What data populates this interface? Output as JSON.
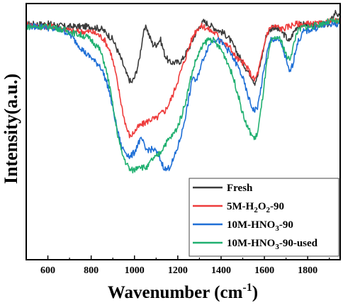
{
  "chart_data": {
    "type": "line",
    "xlabel_main": "Wavenumber (cm",
    "xlabel_sup": "-1",
    "xlabel_end": ")",
    "ylabel": "Intensity(a.u.)",
    "xlim": [
      500,
      1950
    ],
    "ylim": [
      0,
      1
    ],
    "y_ticks_shown": false,
    "x_ticks": [
      600,
      800,
      1000,
      1200,
      1400,
      1600,
      1800
    ],
    "grid": false,
    "legend_position": "bottom-right",
    "series": [
      {
        "name": "Fresh",
        "legend_parts": [
          {
            "t": "Fresh"
          }
        ],
        "color": "#3b3b3b",
        "points": [
          [
            500,
            0.92
          ],
          [
            560,
            0.92
          ],
          [
            620,
            0.92
          ],
          [
            680,
            0.91
          ],
          [
            740,
            0.91
          ],
          [
            800,
            0.91
          ],
          [
            850,
            0.9
          ],
          [
            900,
            0.86
          ],
          [
            940,
            0.78
          ],
          [
            965,
            0.72
          ],
          [
            985,
            0.69
          ],
          [
            1000,
            0.71
          ],
          [
            1020,
            0.77
          ],
          [
            1040,
            0.88
          ],
          [
            1055,
            0.91
          ],
          [
            1070,
            0.87
          ],
          [
            1085,
            0.84
          ],
          [
            1100,
            0.84
          ],
          [
            1120,
            0.86
          ],
          [
            1140,
            0.8
          ],
          [
            1160,
            0.77
          ],
          [
            1180,
            0.77
          ],
          [
            1200,
            0.77
          ],
          [
            1220,
            0.78
          ],
          [
            1240,
            0.81
          ],
          [
            1260,
            0.84
          ],
          [
            1280,
            0.88
          ],
          [
            1300,
            0.91
          ],
          [
            1320,
            0.93
          ],
          [
            1340,
            0.92
          ],
          [
            1360,
            0.91
          ],
          [
            1380,
            0.9
          ],
          [
            1400,
            0.89
          ],
          [
            1420,
            0.88
          ],
          [
            1440,
            0.86
          ],
          [
            1460,
            0.83
          ],
          [
            1480,
            0.8
          ],
          [
            1500,
            0.77
          ],
          [
            1520,
            0.74
          ],
          [
            1540,
            0.72
          ],
          [
            1555,
            0.69
          ],
          [
            1570,
            0.72
          ],
          [
            1590,
            0.8
          ],
          [
            1610,
            0.88
          ],
          [
            1640,
            0.91
          ],
          [
            1660,
            0.9
          ],
          [
            1680,
            0.89
          ],
          [
            1700,
            0.87
          ],
          [
            1715,
            0.85
          ],
          [
            1730,
            0.88
          ],
          [
            1750,
            0.91
          ],
          [
            1780,
            0.92
          ],
          [
            1820,
            0.91
          ],
          [
            1860,
            0.92
          ],
          [
            1900,
            0.92
          ],
          [
            1930,
            0.97
          ],
          [
            1950,
            0.94
          ]
        ]
      },
      {
        "name": "5M-H2O2-90",
        "legend_parts": [
          {
            "t": "5M-H"
          },
          {
            "t": "2",
            "sub": true
          },
          {
            "t": "O"
          },
          {
            "t": "2",
            "sub": true
          },
          {
            "t": "-90"
          }
        ],
        "color": "#ee3b3b",
        "points": [
          [
            500,
            0.92
          ],
          [
            560,
            0.91
          ],
          [
            620,
            0.91
          ],
          [
            680,
            0.9
          ],
          [
            720,
            0.89
          ],
          [
            760,
            0.89
          ],
          [
            800,
            0.89
          ],
          [
            830,
            0.88
          ],
          [
            860,
            0.86
          ],
          [
            890,
            0.81
          ],
          [
            910,
            0.74
          ],
          [
            930,
            0.65
          ],
          [
            950,
            0.56
          ],
          [
            965,
            0.51
          ],
          [
            980,
            0.48
          ],
          [
            1000,
            0.5
          ],
          [
            1020,
            0.52
          ],
          [
            1040,
            0.53
          ],
          [
            1060,
            0.54
          ],
          [
            1080,
            0.55
          ],
          [
            1100,
            0.55
          ],
          [
            1120,
            0.57
          ],
          [
            1140,
            0.58
          ],
          [
            1160,
            0.61
          ],
          [
            1180,
            0.65
          ],
          [
            1200,
            0.7
          ],
          [
            1220,
            0.75
          ],
          [
            1240,
            0.8
          ],
          [
            1260,
            0.85
          ],
          [
            1280,
            0.89
          ],
          [
            1300,
            0.91
          ],
          [
            1320,
            0.91
          ],
          [
            1340,
            0.9
          ],
          [
            1360,
            0.89
          ],
          [
            1380,
            0.88
          ],
          [
            1400,
            0.86
          ],
          [
            1420,
            0.84
          ],
          [
            1440,
            0.83
          ],
          [
            1460,
            0.8
          ],
          [
            1480,
            0.78
          ],
          [
            1500,
            0.77
          ],
          [
            1520,
            0.75
          ],
          [
            1540,
            0.72
          ],
          [
            1555,
            0.7
          ],
          [
            1570,
            0.73
          ],
          [
            1590,
            0.8
          ],
          [
            1610,
            0.88
          ],
          [
            1630,
            0.91
          ],
          [
            1660,
            0.91
          ],
          [
            1680,
            0.9
          ],
          [
            1710,
            0.91
          ],
          [
            1740,
            0.92
          ],
          [
            1780,
            0.92
          ],
          [
            1820,
            0.92
          ],
          [
            1860,
            0.92
          ],
          [
            1900,
            0.93
          ],
          [
            1950,
            0.93
          ]
        ]
      },
      {
        "name": "10M-HNO3-90",
        "legend_parts": [
          {
            "t": "10M-HNO"
          },
          {
            "t": "3",
            "sub": true
          },
          {
            "t": "-90"
          }
        ],
        "color": "#1f6fd6",
        "points": [
          [
            500,
            0.91
          ],
          [
            540,
            0.91
          ],
          [
            580,
            0.91
          ],
          [
            620,
            0.9
          ],
          [
            650,
            0.9
          ],
          [
            680,
            0.89
          ],
          [
            700,
            0.88
          ],
          [
            720,
            0.86
          ],
          [
            740,
            0.84
          ],
          [
            760,
            0.82
          ],
          [
            780,
            0.8
          ],
          [
            800,
            0.79
          ],
          [
            820,
            0.77
          ],
          [
            840,
            0.76
          ],
          [
            860,
            0.72
          ],
          [
            880,
            0.67
          ],
          [
            900,
            0.59
          ],
          [
            920,
            0.51
          ],
          [
            940,
            0.44
          ],
          [
            960,
            0.42
          ],
          [
            980,
            0.4
          ],
          [
            1000,
            0.42
          ],
          [
            1020,
            0.46
          ],
          [
            1035,
            0.47
          ],
          [
            1050,
            0.43
          ],
          [
            1070,
            0.43
          ],
          [
            1090,
            0.43
          ],
          [
            1110,
            0.41
          ],
          [
            1130,
            0.37
          ],
          [
            1145,
            0.35
          ],
          [
            1160,
            0.36
          ],
          [
            1180,
            0.39
          ],
          [
            1200,
            0.44
          ],
          [
            1220,
            0.5
          ],
          [
            1240,
            0.58
          ],
          [
            1260,
            0.67
          ],
          [
            1270,
            0.72
          ],
          [
            1285,
            0.69
          ],
          [
            1300,
            0.74
          ],
          [
            1320,
            0.79
          ],
          [
            1340,
            0.83
          ],
          [
            1360,
            0.86
          ],
          [
            1380,
            0.86
          ],
          [
            1400,
            0.85
          ],
          [
            1420,
            0.83
          ],
          [
            1440,
            0.81
          ],
          [
            1460,
            0.78
          ],
          [
            1480,
            0.75
          ],
          [
            1500,
            0.71
          ],
          [
            1520,
            0.65
          ],
          [
            1540,
            0.6
          ],
          [
            1555,
            0.58
          ],
          [
            1570,
            0.6
          ],
          [
            1590,
            0.7
          ],
          [
            1610,
            0.8
          ],
          [
            1630,
            0.86
          ],
          [
            1660,
            0.86
          ],
          [
            1680,
            0.84
          ],
          [
            1700,
            0.78
          ],
          [
            1715,
            0.73
          ],
          [
            1730,
            0.76
          ],
          [
            1750,
            0.84
          ],
          [
            1780,
            0.89
          ],
          [
            1820,
            0.9
          ],
          [
            1860,
            0.91
          ],
          [
            1900,
            0.92
          ],
          [
            1950,
            0.92
          ]
        ]
      },
      {
        "name": "10M-HNO3-90-used",
        "legend_parts": [
          {
            "t": "10M-HNO"
          },
          {
            "t": "3",
            "sub": true
          },
          {
            "t": "-90-used"
          }
        ],
        "color": "#20b070",
        "points": [
          [
            500,
            0.91
          ],
          [
            540,
            0.91
          ],
          [
            580,
            0.91
          ],
          [
            620,
            0.91
          ],
          [
            660,
            0.9
          ],
          [
            700,
            0.89
          ],
          [
            740,
            0.88
          ],
          [
            780,
            0.87
          ],
          [
            810,
            0.85
          ],
          [
            840,
            0.82
          ],
          [
            860,
            0.77
          ],
          [
            880,
            0.7
          ],
          [
            900,
            0.6
          ],
          [
            920,
            0.5
          ],
          [
            940,
            0.42
          ],
          [
            960,
            0.38
          ],
          [
            980,
            0.35
          ],
          [
            1000,
            0.35
          ],
          [
            1020,
            0.37
          ],
          [
            1040,
            0.36
          ],
          [
            1060,
            0.36
          ],
          [
            1080,
            0.39
          ],
          [
            1100,
            0.4
          ],
          [
            1120,
            0.42
          ],
          [
            1140,
            0.45
          ],
          [
            1160,
            0.47
          ],
          [
            1180,
            0.49
          ],
          [
            1200,
            0.52
          ],
          [
            1220,
            0.57
          ],
          [
            1240,
            0.63
          ],
          [
            1260,
            0.71
          ],
          [
            1280,
            0.77
          ],
          [
            1300,
            0.81
          ],
          [
            1320,
            0.84
          ],
          [
            1340,
            0.86
          ],
          [
            1360,
            0.86
          ],
          [
            1380,
            0.84
          ],
          [
            1400,
            0.82
          ],
          [
            1420,
            0.79
          ],
          [
            1440,
            0.75
          ],
          [
            1460,
            0.7
          ],
          [
            1480,
            0.64
          ],
          [
            1500,
            0.57
          ],
          [
            1520,
            0.52
          ],
          [
            1540,
            0.49
          ],
          [
            1555,
            0.47
          ],
          [
            1570,
            0.5
          ],
          [
            1590,
            0.62
          ],
          [
            1610,
            0.76
          ],
          [
            1630,
            0.85
          ],
          [
            1660,
            0.87
          ],
          [
            1680,
            0.85
          ],
          [
            1700,
            0.8
          ],
          [
            1715,
            0.78
          ],
          [
            1730,
            0.82
          ],
          [
            1750,
            0.89
          ],
          [
            1780,
            0.91
          ],
          [
            1820,
            0.91
          ],
          [
            1860,
            0.92
          ],
          [
            1900,
            0.93
          ],
          [
            1950,
            0.93
          ]
        ]
      }
    ]
  }
}
